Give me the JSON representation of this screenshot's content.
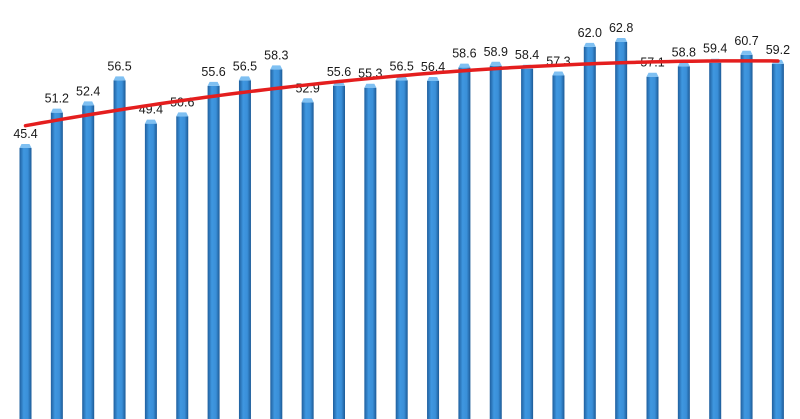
{
  "chart_data": {
    "type": "bar",
    "title": "",
    "xlabel": "",
    "ylabel": "",
    "categories": [],
    "values": [
      45.4,
      51.2,
      52.4,
      56.5,
      49.4,
      50.6,
      55.6,
      56.5,
      58.3,
      52.9,
      55.6,
      55.3,
      56.5,
      56.4,
      58.6,
      58.9,
      58.4,
      57.3,
      62.0,
      62.8,
      57.1,
      58.8,
      59.4,
      60.7,
      59.2
    ],
    "labels": [
      "45.4",
      "51.2",
      "52.4",
      "56.5",
      "49.4",
      "50.6",
      "55.6",
      "56.5",
      "58.3",
      "52.9",
      "55.6",
      "55.3",
      "56.5",
      "56.4",
      "58.6",
      "58.9",
      "58.4",
      "57.3",
      "62.0",
      "62.8",
      "57.1",
      "58.8",
      "59.4",
      "60.7",
      "59.2"
    ],
    "trendline": {
      "type": "polynomial",
      "color": "#e41e1e"
    },
    "grid": false,
    "legend": "none",
    "colors": {
      "bar": "#3a8fd8",
      "bar_dark": "#1f5f9e",
      "bar_top": "#7fc0f2",
      "trend": "#e41e1e"
    }
  }
}
